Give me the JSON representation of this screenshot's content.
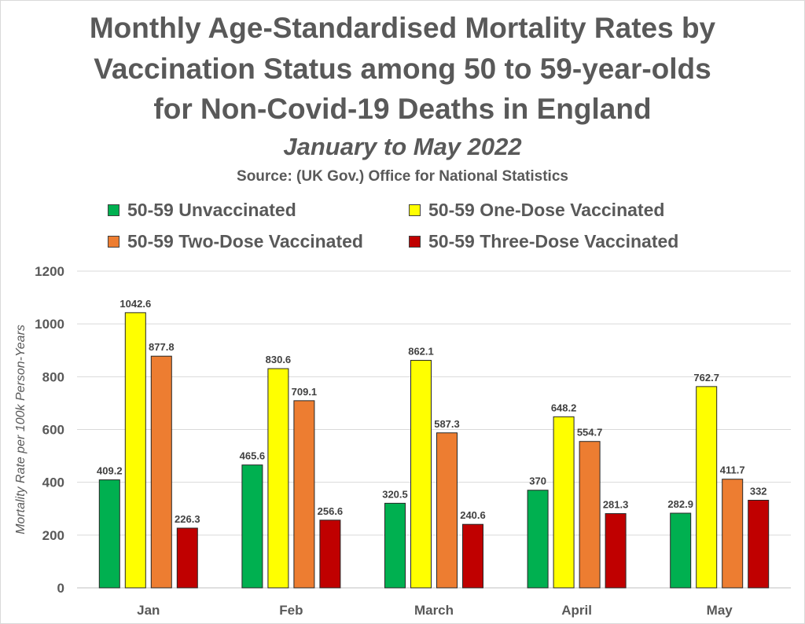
{
  "chart_data": {
    "type": "bar",
    "title_lines": [
      "Monthly Age-Standardised Mortality Rates by",
      "Vaccination Status among 50 to 59-year-olds",
      "for Non-Covid-19 Deaths in England"
    ],
    "subtitle": "January to May 2022",
    "source": "Source: (UK Gov.) Office for National Statistics",
    "xlabel": "",
    "ylabel": "Mortality Rate per 100k Person-Years",
    "ylim": [
      0,
      1200
    ],
    "yticks": [
      0,
      200,
      400,
      600,
      800,
      1000,
      1200
    ],
    "grid": true,
    "legend_placement": "top",
    "categories": [
      "Jan",
      "Feb",
      "March",
      "April",
      "May"
    ],
    "series": [
      {
        "name": "50-59 Unvaccinated",
        "color": "#00b050",
        "values": [
          409.2,
          465.6,
          320.5,
          370,
          282.9
        ]
      },
      {
        "name": "50-59 One-Dose Vaccinated",
        "color": "#ffff00",
        "values": [
          1042.6,
          830.6,
          862.1,
          648.2,
          762.7
        ]
      },
      {
        "name": "50-59 Two-Dose Vaccinated",
        "color": "#ed7d31",
        "values": [
          877.8,
          709.1,
          587.3,
          554.7,
          411.7
        ]
      },
      {
        "name": "50-59 Three-Dose Vaccinated",
        "color": "#c00000",
        "values": [
          226.3,
          256.6,
          240.6,
          281.3,
          332
        ]
      }
    ]
  }
}
